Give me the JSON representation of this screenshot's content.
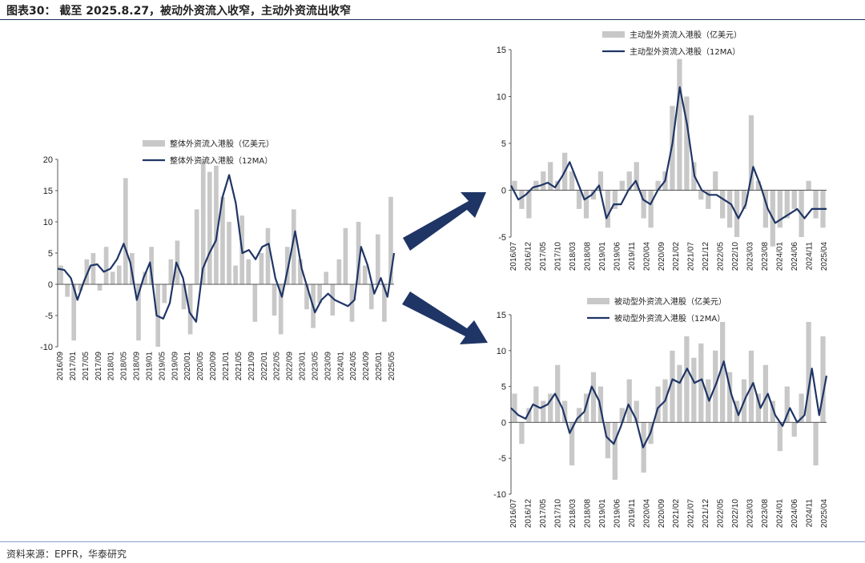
{
  "header": {
    "title": "图表30：  截至 2025.8.27，被动外资流入收窄，主动外资流出收窄"
  },
  "footer": {
    "source": "资料来源：EPFR，华泰研究"
  },
  "colors": {
    "bar": "#c8c8c8",
    "line": "#1f3566",
    "arrow": "#1f3566",
    "rule": "#1c2e5a"
  },
  "chart_data": [
    {
      "id": "overall",
      "type": "bar",
      "unit": "亿美元",
      "series": [
        {
          "name": "整体外资流入港股（亿美元）",
          "kind": "bar"
        },
        {
          "name": "整体外资流入港股（12MA）",
          "kind": "line"
        }
      ],
      "ylim": [
        -10,
        20
      ],
      "yticks": [
        -10,
        -5,
        0,
        5,
        10,
        15,
        20
      ],
      "xticks": [
        "2016/09",
        "2017/01",
        "2017/05",
        "2017/09",
        "2018/01",
        "2018/05",
        "2018/09",
        "2019/01",
        "2019/05",
        "2019/09",
        "2020/01",
        "2020/05",
        "2020/09",
        "2021/01",
        "2021/05",
        "2021/09",
        "2022/01",
        "2022/05",
        "2022/09",
        "2023/01",
        "2023/05",
        "2023/09",
        "2024/01",
        "2024/05",
        "2024/09",
        "2025/01",
        "2025/05"
      ],
      "line_points": [
        [
          0,
          2.5
        ],
        [
          1,
          2.3
        ],
        [
          2,
          1.0
        ],
        [
          3,
          -2.5
        ],
        [
          4,
          0.5
        ],
        [
          5,
          3.0
        ],
        [
          6,
          3.2
        ],
        [
          7,
          2.0
        ],
        [
          8,
          2.5
        ],
        [
          9,
          4.0
        ],
        [
          10,
          6.5
        ],
        [
          11,
          3.5
        ],
        [
          12,
          -2.5
        ],
        [
          13,
          1.0
        ],
        [
          14,
          3.5
        ],
        [
          15,
          -5.0
        ],
        [
          16,
          -5.5
        ],
        [
          17,
          -3.0
        ],
        [
          18,
          3.5
        ],
        [
          19,
          1.0
        ],
        [
          20,
          -4.5
        ],
        [
          21,
          -6.0
        ],
        [
          22,
          2.5
        ],
        [
          23,
          5.0
        ],
        [
          24,
          7.0
        ],
        [
          25,
          14.0
        ],
        [
          26,
          17.5
        ],
        [
          27,
          13.0
        ],
        [
          28,
          5.0
        ],
        [
          29,
          5.5
        ],
        [
          30,
          4.0
        ],
        [
          31,
          6.0
        ],
        [
          32,
          6.5
        ],
        [
          33,
          1.0
        ],
        [
          34,
          -2.0
        ],
        [
          35,
          3.0
        ],
        [
          36,
          8.5
        ],
        [
          37,
          2.5
        ],
        [
          38,
          -1.0
        ],
        [
          39,
          -4.5
        ],
        [
          40,
          -2.5
        ],
        [
          41,
          -1.5
        ],
        [
          42,
          -2.5
        ],
        [
          43,
          -3.0
        ],
        [
          44,
          -3.5
        ],
        [
          45,
          -2.5
        ],
        [
          46,
          6.0
        ],
        [
          47,
          3.0
        ],
        [
          48,
          -1.5
        ],
        [
          49,
          1.0
        ],
        [
          50,
          -2.0
        ],
        [
          51,
          5.0
        ]
      ],
      "bar_values": [
        3,
        -2,
        -9,
        -1,
        4,
        5,
        -1,
        6,
        2,
        3,
        17,
        5,
        -9,
        2,
        6,
        -10,
        -3,
        4,
        7,
        -4,
        -8,
        12,
        20,
        18,
        19,
        14,
        10,
        3,
        11,
        4,
        -6,
        5,
        9,
        -5,
        -8,
        6,
        12,
        4,
        -4,
        -7,
        -3,
        2,
        -5,
        4,
        9,
        -6,
        10,
        3,
        -4,
        8,
        -6,
        14
      ],
      "annotations": []
    },
    {
      "id": "active",
      "type": "bar",
      "unit": "亿美元",
      "series": [
        {
          "name": "主动型外资流入港股（亿美元）",
          "kind": "bar"
        },
        {
          "name": "主动型外资流入港股（12MA）",
          "kind": "line"
        }
      ],
      "ylim": [
        -5,
        15
      ],
      "yticks": [
        -5,
        0,
        5,
        10,
        15
      ],
      "xticks": [
        "2016/07",
        "2016/12",
        "2017/05",
        "2017/10",
        "2018/03",
        "2018/08",
        "2019/01",
        "2019/06",
        "2019/11",
        "2020/04",
        "2020/09",
        "2021/02",
        "2021/07",
        "2021/12",
        "2022/05",
        "2022/10",
        "2023/03",
        "2023/08",
        "2024/01",
        "2024/06",
        "2024/11",
        "2025/04"
      ],
      "line_points": [
        [
          0,
          0.5
        ],
        [
          1,
          -1.0
        ],
        [
          2,
          -0.5
        ],
        [
          3,
          0.3
        ],
        [
          4,
          0.5
        ],
        [
          5,
          0.8
        ],
        [
          6,
          0.3
        ],
        [
          7,
          1.5
        ],
        [
          8,
          3.0
        ],
        [
          9,
          1.0
        ],
        [
          10,
          -1.0
        ],
        [
          11,
          -0.5
        ],
        [
          12,
          0.5
        ],
        [
          13,
          -3.0
        ],
        [
          14,
          -1.5
        ],
        [
          15,
          -1.5
        ],
        [
          16,
          0.0
        ],
        [
          17,
          1.0
        ],
        [
          18,
          -1.0
        ],
        [
          19,
          -1.5
        ],
        [
          20,
          0.0
        ],
        [
          21,
          1.0
        ],
        [
          22,
          5.0
        ],
        [
          23,
          11.0
        ],
        [
          24,
          7.0
        ],
        [
          25,
          1.5
        ],
        [
          26,
          0.0
        ],
        [
          27,
          -0.5
        ],
        [
          28,
          -0.5
        ],
        [
          29,
          -1.0
        ],
        [
          30,
          -1.5
        ],
        [
          31,
          -3.0
        ],
        [
          32,
          -1.5
        ],
        [
          33,
          2.5
        ],
        [
          34,
          0.5
        ],
        [
          35,
          -2.0
        ],
        [
          36,
          -3.5
        ],
        [
          37,
          -3.0
        ],
        [
          38,
          -2.5
        ],
        [
          39,
          -2.0
        ],
        [
          40,
          -3.0
        ],
        [
          41,
          -2.0
        ],
        [
          42,
          -2.0
        ],
        [
          43,
          -2.0
        ]
      ],
      "bar_values": [
        1,
        -2,
        -3,
        1,
        2,
        3,
        1,
        4,
        2,
        -2,
        -3,
        -1,
        2,
        -4,
        -2,
        1,
        2,
        3,
        -3,
        -4,
        1,
        2,
        9,
        14,
        10,
        3,
        -1,
        -2,
        2,
        -3,
        -4,
        -5,
        -2,
        8,
        1,
        -4,
        -6,
        -4,
        -3,
        -2,
        -5,
        1,
        -3,
        -4
      ],
      "annotations": []
    },
    {
      "id": "passive",
      "type": "bar",
      "unit": "亿美元",
      "series": [
        {
          "name": "被动型外资流入港股（亿美元）",
          "kind": "bar"
        },
        {
          "name": "被动型外资流入港股（12MA）",
          "kind": "line"
        }
      ],
      "ylim": [
        -10,
        15
      ],
      "yticks": [
        -10,
        -5,
        0,
        5,
        10,
        15
      ],
      "xticks": [
        "2016/07",
        "2016/12",
        "2017/05",
        "2017/10",
        "2018/03",
        "2018/08",
        "2019/01",
        "2019/06",
        "2019/11",
        "2020/04",
        "2020/09",
        "2021/02",
        "2021/07",
        "2021/12",
        "2022/05",
        "2022/10",
        "2023/03",
        "2023/08",
        "2024/01",
        "2024/06",
        "2024/11",
        "2025/04"
      ],
      "line_points": [
        [
          0,
          2.0
        ],
        [
          1,
          1.0
        ],
        [
          2,
          0.5
        ],
        [
          3,
          2.5
        ],
        [
          4,
          2.0
        ],
        [
          5,
          2.5
        ],
        [
          6,
          4.0
        ],
        [
          7,
          2.0
        ],
        [
          8,
          -1.5
        ],
        [
          9,
          0.5
        ],
        [
          10,
          1.5
        ],
        [
          11,
          5.0
        ],
        [
          12,
          3.0
        ],
        [
          13,
          -2.0
        ],
        [
          14,
          -3.0
        ],
        [
          15,
          -0.5
        ],
        [
          16,
          2.5
        ],
        [
          17,
          0.5
        ],
        [
          18,
          -3.5
        ],
        [
          19,
          -1.5
        ],
        [
          20,
          2.0
        ],
        [
          21,
          3.0
        ],
        [
          22,
          6.0
        ],
        [
          23,
          5.5
        ],
        [
          24,
          7.5
        ],
        [
          25,
          5.5
        ],
        [
          26,
          6.0
        ],
        [
          27,
          3.0
        ],
        [
          28,
          5.5
        ],
        [
          29,
          8.5
        ],
        [
          30,
          4.0
        ],
        [
          31,
          1.0
        ],
        [
          32,
          3.5
        ],
        [
          33,
          5.5
        ],
        [
          34,
          2.0
        ],
        [
          35,
          4.0
        ],
        [
          36,
          1.0
        ],
        [
          37,
          -0.5
        ],
        [
          38,
          2.0
        ],
        [
          39,
          0.0
        ],
        [
          40,
          1.0
        ],
        [
          41,
          7.5
        ],
        [
          42,
          1.0
        ],
        [
          43,
          6.5
        ]
      ],
      "bar_values": [
        4,
        -3,
        2,
        5,
        3,
        4,
        8,
        3,
        -6,
        2,
        4,
        7,
        5,
        -5,
        -8,
        2,
        6,
        3,
        -7,
        -3,
        5,
        6,
        10,
        8,
        12,
        9,
        11,
        6,
        10,
        14,
        7,
        3,
        6,
        10,
        4,
        8,
        3,
        -4,
        5,
        -2,
        4,
        14,
        -6,
        12
      ],
      "annotations": []
    }
  ]
}
